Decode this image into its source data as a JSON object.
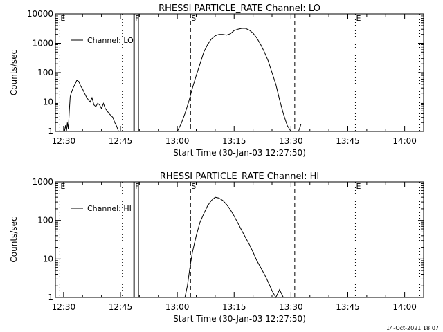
{
  "footer_timestamp": "14-Oct-2021 18:07",
  "chart_data": [
    {
      "type": "line",
      "title": "RHESSI PARTICLE_RATE Channel: LO",
      "xlabel": "Start Time (30-Jan-03 12:27:50)",
      "ylabel": "Counts/sec",
      "y_scale": "log",
      "ylim": [
        1,
        10000
      ],
      "y_ticks": [
        1,
        10,
        100,
        1000,
        10000
      ],
      "y_tick_labels": [
        "1",
        "10",
        "100",
        "1000",
        "10000"
      ],
      "xlim": [
        "12:27:50",
        "14:05:00"
      ],
      "x_ticks": [
        "12:30",
        "12:45",
        "13:00",
        "13:15",
        "13:30",
        "13:45",
        "14:00"
      ],
      "legend": "top-left",
      "series": [
        {
          "name": "Channel: LO",
          "x": [
            "12:30:00",
            "12:30:15",
            "12:30:30",
            "12:30:45",
            "12:31:00",
            "12:31:15",
            "12:31:30",
            "12:31:45",
            "12:32:00",
            "12:32:30",
            "12:33:00",
            "12:33:30",
            "12:34:00",
            "12:34:30",
            "12:35:00",
            "12:35:30",
            "12:36:00",
            "12:36:30",
            "12:37:00",
            "12:37:30",
            "12:38:00",
            "12:38:30",
            "12:39:00",
            "12:39:30",
            "12:40:00",
            "12:40:30",
            "12:41:00",
            "12:41:30",
            "12:42:00",
            "12:42:30",
            "12:43:00",
            "12:43:30",
            "12:44:00",
            "12:44:30"
          ],
          "values": [
            1.5,
            1.0,
            1.6,
            1.0,
            2.0,
            1.2,
            5,
            15,
            20,
            30,
            40,
            55,
            50,
            35,
            28,
            20,
            15,
            12,
            10,
            14,
            8,
            7,
            9,
            8,
            6,
            9,
            6,
            5,
            4,
            3.5,
            3,
            2,
            1.5,
            1
          ],
          "gap_after": true
        },
        {
          "name": "Channel: LO",
          "x": [
            "12:48:30",
            "12:48:31",
            "12:49:00",
            "12:49:45",
            "12:49:46"
          ],
          "values": [
            1,
            10000,
            10000,
            10000,
            1
          ]
        },
        {
          "name": "Channel: LO",
          "x": [
            "13:00:00",
            "13:01:00",
            "13:02:00",
            "13:03:00",
            "13:04:00",
            "13:05:00",
            "13:06:00",
            "13:07:00",
            "13:08:00",
            "13:09:00",
            "13:10:00",
            "13:11:00",
            "13:12:00",
            "13:13:00",
            "13:14:00",
            "13:15:00",
            "13:16:00",
            "13:17:00",
            "13:18:00",
            "13:19:00",
            "13:20:00",
            "13:21:00",
            "13:22:00",
            "13:23:00",
            "13:24:00",
            "13:25:00",
            "13:26:00",
            "13:27:00",
            "13:28:00",
            "13:29:00",
            "13:30:00"
          ],
          "values": [
            1,
            1.8,
            4,
            10,
            30,
            80,
            200,
            500,
            900,
            1400,
            1800,
            2000,
            2000,
            1900,
            2100,
            2700,
            3000,
            3200,
            3200,
            2800,
            2200,
            1500,
            900,
            500,
            250,
            100,
            40,
            12,
            4,
            1.6,
            1
          ]
        },
        {
          "name": "Channel: LO",
          "x": [
            "13:32:00",
            "13:32:40"
          ],
          "values": [
            1,
            1.8
          ]
        }
      ],
      "annotations": [
        {
          "label": "E",
          "x": "12:29:00",
          "style": "dotted"
        },
        {
          "label": "",
          "x": "12:45:30",
          "style": "dotted"
        },
        {
          "label": "F",
          "x": "12:48:40",
          "style": "solid"
        },
        {
          "label": "S",
          "x": "13:03:30",
          "style": "dashed"
        },
        {
          "label": "",
          "x": "13:31:00",
          "style": "dashed"
        },
        {
          "label": "E",
          "x": "13:47:00",
          "style": "dotted"
        },
        {
          "label": "",
          "x": "14:04:00",
          "style": "dotted"
        }
      ]
    },
    {
      "type": "line",
      "title": "RHESSI PARTICLE_RATE Channel: HI",
      "xlabel": "Start Time (30-Jan-03 12:27:50)",
      "ylabel": "Counts/sec",
      "y_scale": "log",
      "ylim": [
        1,
        1000
      ],
      "y_ticks": [
        1,
        10,
        100,
        1000
      ],
      "y_tick_labels": [
        "1",
        "10",
        "100",
        "1000"
      ],
      "xlim": [
        "12:27:50",
        "14:05:00"
      ],
      "x_ticks": [
        "12:30",
        "12:45",
        "13:00",
        "13:15",
        "13:30",
        "13:45",
        "14:00"
      ],
      "legend": "top-left",
      "series": [
        {
          "name": "Channel: HI",
          "x": [
            "12:48:30",
            "12:48:31",
            "12:49:00",
            "12:49:45",
            "12:49:46"
          ],
          "values": [
            1,
            1000,
            1000,
            1000,
            1
          ]
        },
        {
          "name": "Channel: HI",
          "x": [
            "13:02:00",
            "13:02:40",
            "13:03:20",
            "13:04:00",
            "13:05:00",
            "13:06:00",
            "13:07:00",
            "13:08:00",
            "13:09:00",
            "13:10:00",
            "13:11:00",
            "13:12:00",
            "13:13:00",
            "13:14:00",
            "13:15:00",
            "13:16:00",
            "13:17:00",
            "13:18:00",
            "13:19:00",
            "13:20:00",
            "13:21:00",
            "13:22:00",
            "13:23:00",
            "13:24:00",
            "13:25:00",
            "13:26:00",
            "13:27:00",
            "13:28:00"
          ],
          "values": [
            1,
            2,
            6,
            15,
            40,
            90,
            150,
            240,
            330,
            400,
            380,
            330,
            260,
            190,
            130,
            85,
            55,
            36,
            24,
            15,
            9,
            6,
            4,
            2.5,
            1.5,
            1,
            1.6,
            1
          ]
        }
      ],
      "annotations": [
        {
          "label": "E",
          "x": "12:29:00",
          "style": "dotted"
        },
        {
          "label": "",
          "x": "12:45:30",
          "style": "dotted"
        },
        {
          "label": "F",
          "x": "12:48:40",
          "style": "solid"
        },
        {
          "label": "S",
          "x": "13:03:30",
          "style": "dashed"
        },
        {
          "label": "",
          "x": "13:31:00",
          "style": "dashed"
        },
        {
          "label": "E",
          "x": "13:47:00",
          "style": "dotted"
        },
        {
          "label": "",
          "x": "14:04:00",
          "style": "dotted"
        }
      ]
    }
  ]
}
